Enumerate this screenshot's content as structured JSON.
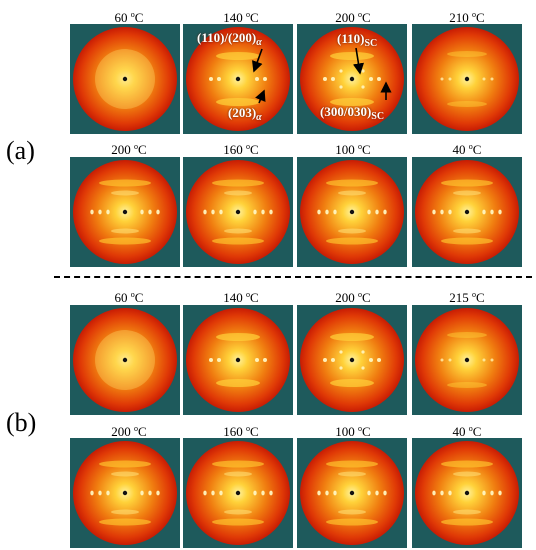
{
  "panels": [
    {
      "label": "(a)",
      "rows": [
        {
          "temps": [
            {
              "value": "60",
              "unit": "C"
            },
            {
              "value": "140",
              "unit": "C"
            },
            {
              "value": "200",
              "unit": "C"
            },
            {
              "value": "210",
              "unit": "C"
            }
          ]
        },
        {
          "temps": [
            {
              "value": "200",
              "unit": "C"
            },
            {
              "value": "160",
              "unit": "C"
            },
            {
              "value": "100",
              "unit": "C"
            },
            {
              "value": "40",
              "unit": "C"
            }
          ]
        }
      ]
    },
    {
      "label": "(b)",
      "rows": [
        {
          "temps": [
            {
              "value": "60",
              "unit": "C"
            },
            {
              "value": "140",
              "unit": "C"
            },
            {
              "value": "200",
              "unit": "C"
            },
            {
              "value": "215",
              "unit": "C"
            }
          ]
        },
        {
          "temps": [
            {
              "value": "200",
              "unit": "C"
            },
            {
              "value": "160",
              "unit": "C"
            },
            {
              "value": "100",
              "unit": "C"
            },
            {
              "value": "40",
              "unit": "C"
            }
          ]
        }
      ]
    }
  ],
  "degree_mark": "o",
  "annotations": {
    "a110_200": {
      "text": "(110)/(200)",
      "sub": "α"
    },
    "a203": {
      "text": "(203)",
      "sub": "α"
    },
    "sc110": {
      "text": "(110)",
      "sub": "SC"
    },
    "sc300": {
      "text": "(300/030)",
      "sub": "SC"
    }
  },
  "colors": {
    "background_square": "#1e5a5c",
    "pattern_outer": "#c81c04",
    "pattern_inner": "#ffd23a"
  }
}
